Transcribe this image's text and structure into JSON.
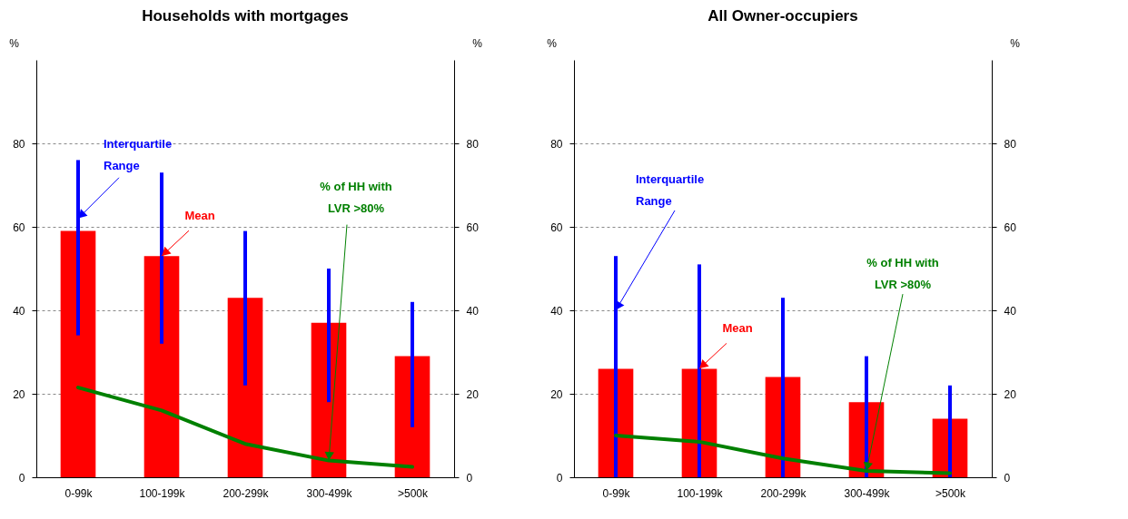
{
  "chart_data": [
    {
      "type": "bar",
      "title": "Households with mortgages",
      "ylabel": "%",
      "y2label": "%",
      "categories": [
        "0-99k",
        "100-199k",
        "200-299k",
        "300-499k",
        ">500k"
      ],
      "series": [
        {
          "color": "#ff0000",
          "values": [
            59,
            53,
            43,
            37,
            29
          ],
          "errors": [
            [
              34,
              76
            ],
            [
              32,
              73
            ],
            [
              22,
              59
            ],
            [
              18,
              50
            ],
            [
              12,
              42
            ]
          ]
        },
        {
          "type": "line",
          "color": "#008000",
          "values": [
            21.5,
            16,
            8,
            4,
            2.5
          ]
        }
      ],
      "ylim": [
        0,
        100
      ],
      "yticks": [
        0,
        20,
        40,
        60,
        80
      ],
      "y2lim": [
        0,
        100
      ],
      "y2ticks": [
        0,
        20,
        40,
        60,
        80
      ],
      "grid": "y",
      "marker": "none",
      "annotations": [
        {
          "text": "Interquartile\nRange",
          "x": "0-99k",
          "y": 62
        },
        {
          "text": "Mean",
          "x": "100-199k",
          "y": 53
        },
        {
          "text": "% of HH with\nLVR >80%",
          "x": "300-499k",
          "y": 4
        }
      ]
    },
    {
      "type": "bar",
      "title": "All Owner-occupiers",
      "ylabel": "%",
      "y2label": "%",
      "categories": [
        "0-99k",
        "100-199k",
        "200-299k",
        "300-499k",
        ">500k"
      ],
      "series": [
        {
          "color": "#ff0000",
          "values": [
            26,
            26,
            24,
            18,
            14
          ],
          "errors": [
            [
              0,
              53
            ],
            [
              0,
              51
            ],
            [
              0,
              43
            ],
            [
              0,
              29
            ],
            [
              0,
              22
            ]
          ]
        },
        {
          "type": "line",
          "color": "#008000",
          "values": [
            10,
            8.5,
            4.5,
            1.5,
            1
          ]
        }
      ],
      "ylim": [
        0,
        100
      ],
      "yticks": [
        0,
        20,
        40,
        60,
        80
      ],
      "y2lim": [
        0,
        100
      ],
      "y2ticks": [
        0,
        20,
        40,
        60,
        80
      ],
      "grid": "y",
      "marker": "none",
      "annotations": [
        {
          "text": "Interquartile\nRange",
          "x": "0-99k",
          "y": 40
        },
        {
          "text": "Mean",
          "x": "100-199k",
          "y": 26
        },
        {
          "text": "% of HH with\nLVR >80%",
          "x": "300-499k",
          "y": 1.5
        }
      ]
    }
  ]
}
